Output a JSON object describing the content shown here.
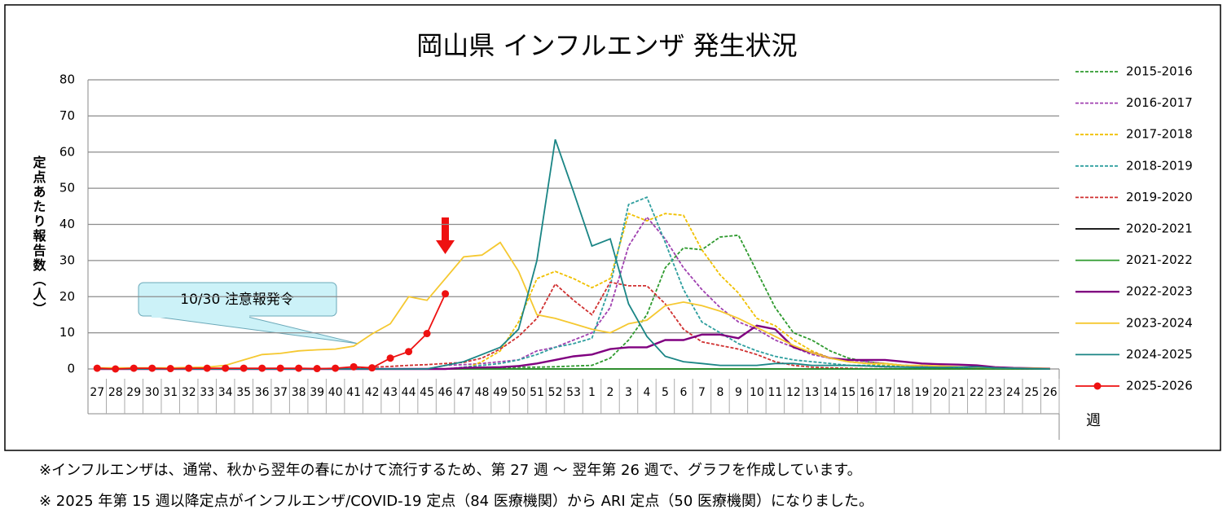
{
  "chart_data": {
    "type": "line",
    "title": "岡山県 インフルエンザ 発生状況",
    "y_label": "定点あたり報告数（人）",
    "x_label": "週",
    "annotation": "10/30 注意報発令",
    "categories": [
      "27",
      "28",
      "29",
      "30",
      "31",
      "32",
      "33",
      "34",
      "35",
      "36",
      "37",
      "38",
      "39",
      "40",
      "41",
      "42",
      "43",
      "44",
      "45",
      "46",
      "47",
      "48",
      "49",
      "50",
      "51",
      "52",
      "53",
      "1",
      "2",
      "3",
      "4",
      "5",
      "6",
      "7",
      "8",
      "9",
      "10",
      "11",
      "12",
      "13",
      "14",
      "15",
      "16",
      "17",
      "18",
      "19",
      "20",
      "21",
      "22",
      "23",
      "24",
      "25",
      "26"
    ],
    "ylim": [
      0,
      80
    ],
    "yticks": [
      0,
      10,
      20,
      30,
      40,
      50,
      60,
      70,
      80
    ],
    "grid": true,
    "legend": "right",
    "series": [
      {
        "name": "2015-2016",
        "color": "#2e9a2e",
        "style": "dashed",
        "values": [
          0,
          0,
          0,
          0,
          0,
          0,
          0,
          0,
          0,
          0,
          0,
          0,
          0,
          0,
          0,
          0,
          0,
          0,
          0,
          0,
          0,
          0.3,
          0.3,
          0.5,
          0.5,
          0.6,
          0.8,
          1,
          3,
          8,
          15,
          28,
          33.5,
          33,
          36.5,
          37,
          27,
          17,
          10,
          8,
          5,
          3,
          2,
          1.5,
          1,
          0.8,
          0.5,
          0.5,
          0.4,
          0.3,
          0.2,
          0.1,
          0
        ]
      },
      {
        "name": "2016-2017",
        "color": "#a040b0",
        "style": "dashed",
        "values": [
          0,
          0,
          0,
          0,
          0,
          0,
          0,
          0,
          0,
          0,
          0,
          0,
          0,
          0,
          0,
          0,
          0,
          0,
          0,
          1,
          1.2,
          1.5,
          2,
          2.5,
          5,
          6,
          8,
          10,
          17,
          34,
          42,
          36,
          28,
          22,
          17,
          13,
          11,
          8,
          6,
          4,
          3,
          2.5,
          2,
          1.5,
          1,
          0.8,
          0.6,
          0.5,
          0.4,
          0.3,
          0.2,
          0.1,
          0.1
        ]
      },
      {
        "name": "2017-2018",
        "color": "#f0c000",
        "style": "dashed",
        "values": [
          0,
          0,
          0,
          0,
          0,
          0,
          0,
          0,
          0,
          0,
          0,
          0,
          0,
          0,
          0,
          0,
          0,
          0,
          0,
          0,
          0,
          2,
          5,
          13,
          25,
          27,
          25,
          22.5,
          25,
          43,
          41,
          43,
          42.5,
          33,
          26,
          21,
          14,
          12,
          8,
          5,
          3,
          2,
          1.5,
          1,
          0.8,
          0.5,
          0.4,
          0.3,
          0.2,
          0.2,
          0.1,
          0.1,
          0
        ]
      },
      {
        "name": "2018-2019",
        "color": "#2f9f9f",
        "style": "dashed",
        "values": [
          0,
          0,
          0,
          0,
          0,
          0,
          0,
          0,
          0,
          0,
          0,
          0,
          0,
          0,
          0,
          0,
          0,
          0,
          0,
          0,
          0.5,
          1,
          1.5,
          2.5,
          4,
          6,
          7,
          8.5,
          23,
          45.5,
          47.5,
          35,
          22,
          13,
          10,
          7,
          5,
          3.5,
          2.5,
          2,
          1.5,
          1,
          1,
          0.8,
          0.6,
          0.5,
          0.4,
          0.3,
          0.2,
          0.2,
          0.1,
          0.1,
          0
        ]
      },
      {
        "name": "2019-2020",
        "color": "#d03030",
        "style": "dashed",
        "values": [
          0,
          0,
          0,
          0,
          0,
          0,
          0,
          0,
          0,
          0,
          0,
          0,
          0,
          0,
          0,
          0.5,
          0.7,
          1,
          1.2,
          1.5,
          1.8,
          3,
          5.5,
          9,
          14,
          23.5,
          19,
          15,
          24,
          23,
          23,
          18,
          11,
          7.5,
          6.5,
          5.5,
          4,
          2,
          1,
          0.5,
          0.3,
          0.2,
          0.1,
          0.1,
          0,
          0,
          0,
          0,
          0,
          0,
          0,
          0,
          0
        ]
      },
      {
        "name": "2020-2021",
        "color": "#000000",
        "style": "solid",
        "values": [
          0,
          0,
          0,
          0,
          0,
          0,
          0,
          0,
          0,
          0,
          0,
          0,
          0,
          0,
          0,
          0,
          0,
          0,
          0,
          0,
          0,
          0,
          0,
          0,
          0,
          0,
          0,
          0,
          0,
          0,
          0,
          0,
          0,
          0,
          0,
          0,
          0,
          0,
          0,
          0,
          0,
          0,
          0,
          0,
          0,
          0,
          0,
          0,
          0,
          0,
          0,
          0,
          0
        ]
      },
      {
        "name": "2021-2022",
        "color": "#2e9a2e",
        "style": "solid",
        "values": [
          0,
          0,
          0,
          0,
          0,
          0,
          0,
          0,
          0,
          0,
          0,
          0,
          0,
          0,
          0,
          0,
          0,
          0,
          0,
          0,
          0,
          0,
          0,
          0,
          0,
          0,
          0,
          0,
          0,
          0,
          0,
          0,
          0,
          0,
          0,
          0,
          0,
          0,
          0,
          0,
          0,
          0,
          0,
          0,
          0,
          0,
          0,
          0,
          0,
          0,
          0,
          0,
          0
        ]
      },
      {
        "name": "2022-2023",
        "color": "#800080",
        "style": "solid",
        "values": [
          0,
          0,
          0,
          0,
          0,
          0,
          0,
          0,
          0,
          0,
          0,
          0,
          0,
          0,
          0,
          0,
          0,
          0,
          0,
          0,
          0.3,
          0.4,
          0.5,
          0.8,
          1.5,
          2.5,
          3.5,
          4,
          5.5,
          6,
          6,
          8,
          8,
          9.5,
          9.5,
          8.5,
          12,
          11,
          6,
          4.5,
          3,
          2.5,
          2.5,
          2.5,
          2,
          1.5,
          1.3,
          1.2,
          1,
          0.5,
          0.3,
          0.2,
          0.1
        ]
      },
      {
        "name": "2023-2024",
        "color": "#f5c830",
        "style": "solid",
        "values": [
          0.3,
          0.3,
          0.3,
          0.3,
          0.3,
          0.4,
          0.5,
          1,
          2.5,
          4,
          4.3,
          5,
          5.3,
          5.5,
          6.3,
          9.7,
          12.5,
          20,
          19,
          25,
          31,
          31.5,
          35,
          27,
          15,
          14,
          12.5,
          11,
          10,
          12.5,
          13.5,
          17.5,
          18.5,
          17.5,
          16,
          14,
          11.5,
          9,
          6.5,
          4.5,
          3,
          2,
          1.5,
          1.5,
          1,
          1,
          0.8,
          0.6,
          0.5,
          0.3,
          0.2,
          0.2,
          0.1
        ]
      },
      {
        "name": "2024-2025",
        "color": "#1a8585",
        "style": "solid",
        "values": [
          0,
          0,
          0,
          0,
          0,
          0,
          0,
          0,
          0,
          0,
          0,
          0,
          0,
          0,
          0,
          0,
          0,
          0,
          0,
          1,
          2,
          4,
          6,
          11,
          30,
          63.5,
          49,
          34,
          36,
          18,
          9,
          3.5,
          2,
          1.5,
          1,
          1,
          1,
          1.5,
          1.5,
          1,
          1,
          1,
          0.8,
          0.6,
          0.5,
          0.4,
          0.4,
          0.5,
          0.6,
          0.3,
          0.2,
          0.1,
          0
        ]
      },
      {
        "name": "2025-2026",
        "color": "#ee1111",
        "style": "solid",
        "marker": true,
        "values": [
          0.2,
          0,
          0.2,
          0.2,
          0.1,
          0.2,
          0.2,
          0.2,
          0.2,
          0.2,
          0.2,
          0.2,
          0.1,
          0.2,
          0.6,
          0.3,
          3,
          4.8,
          9.8,
          20.8,
          null,
          null,
          null,
          null,
          null,
          null,
          null,
          null,
          null,
          null,
          null,
          null,
          null,
          null,
          null,
          null,
          null,
          null,
          null,
          null,
          null,
          null,
          null,
          null,
          null,
          null,
          null,
          null,
          null,
          null,
          null,
          null,
          null
        ]
      }
    ]
  },
  "notes": [
    "※インフルエンザは、通常、秋から翌年の春にかけて流行するため、第 27 週 ～ 翌年第 26 週で、グラフを作成しています。",
    "※ 2025 年第 15 週以降定点がインフルエンザ/COVID-19 定点（84 医療機関）から ARI 定点（50 医療機関）になりました。"
  ]
}
